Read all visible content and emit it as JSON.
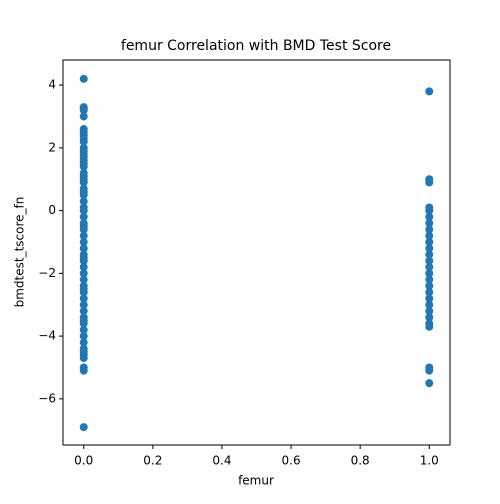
{
  "chart_data": {
    "type": "scatter",
    "title": "femur Correlation with BMD Test Score",
    "xlabel": "femur",
    "ylabel": "bmdtest_tscore_fn",
    "color": "#1f77b4",
    "x": [
      0,
      0,
      0,
      0,
      0,
      0,
      0,
      0,
      0,
      0,
      0,
      0,
      0,
      0,
      0,
      0,
      0,
      0,
      0,
      0,
      0,
      0,
      0,
      0,
      0,
      0,
      0,
      0,
      0,
      0,
      0,
      0,
      0,
      0,
      0,
      0,
      0,
      0,
      0,
      0,
      0,
      0,
      0,
      0,
      0,
      0,
      0,
      0,
      0,
      0,
      0,
      0,
      0,
      0,
      0,
      0,
      0,
      0,
      0,
      1,
      1,
      1,
      1,
      1,
      1,
      1,
      1,
      1,
      1,
      1,
      1,
      1,
      1,
      1,
      1,
      1,
      1,
      1,
      1,
      1,
      1,
      1,
      1,
      1,
      1,
      1
    ],
    "values": [
      4.2,
      3.3,
      3.25,
      3.2,
      3.0,
      2.6,
      2.5,
      2.4,
      2.3,
      2.2,
      2.0,
      1.9,
      1.8,
      1.7,
      1.6,
      1.5,
      1.4,
      1.2,
      1.1,
      1.0,
      0.9,
      0.7,
      0.6,
      0.5,
      0.3,
      0.1,
      0.0,
      -0.2,
      -0.4,
      -0.5,
      -0.6,
      -0.8,
      -1.0,
      -1.2,
      -1.4,
      -1.5,
      -1.6,
      -1.8,
      -2.0,
      -2.2,
      -2.4,
      -2.5,
      -2.6,
      -2.8,
      -3.0,
      -3.2,
      -3.4,
      -3.5,
      -3.6,
      -3.8,
      -4.0,
      -4.2,
      -4.4,
      -4.6,
      -4.7,
      -5.0,
      -5.1,
      -6.9,
      -4.5,
      3.8,
      1.0,
      0.9,
      0.1,
      0.0,
      -0.2,
      -0.4,
      -0.6,
      -0.8,
      -1.0,
      -1.2,
      -1.4,
      -1.6,
      -1.8,
      -2.0,
      -2.2,
      -2.4,
      -2.6,
      -2.8,
      -3.0,
      -3.2,
      -3.4,
      -3.6,
      -3.7,
      -5.0,
      -5.1,
      -5.5
    ],
    "xlim": [
      -0.06,
      1.06
    ],
    "xticks": [
      {
        "value": 0,
        "label": "0.0"
      },
      {
        "value": 0.2,
        "label": "0.2"
      },
      {
        "value": 0.4,
        "label": "0.4"
      },
      {
        "value": 0.6,
        "label": "0.6"
      },
      {
        "value": 0.8,
        "label": "0.8"
      },
      {
        "value": 1,
        "label": "1.0"
      }
    ],
    "ylim": [
      -7.47,
      4.8
    ],
    "yticks": [
      {
        "value": -6,
        "label": "−6"
      },
      {
        "value": -4,
        "label": "−4"
      },
      {
        "value": -2,
        "label": "−2"
      },
      0,
      2,
      4
    ],
    "grid": false
  }
}
